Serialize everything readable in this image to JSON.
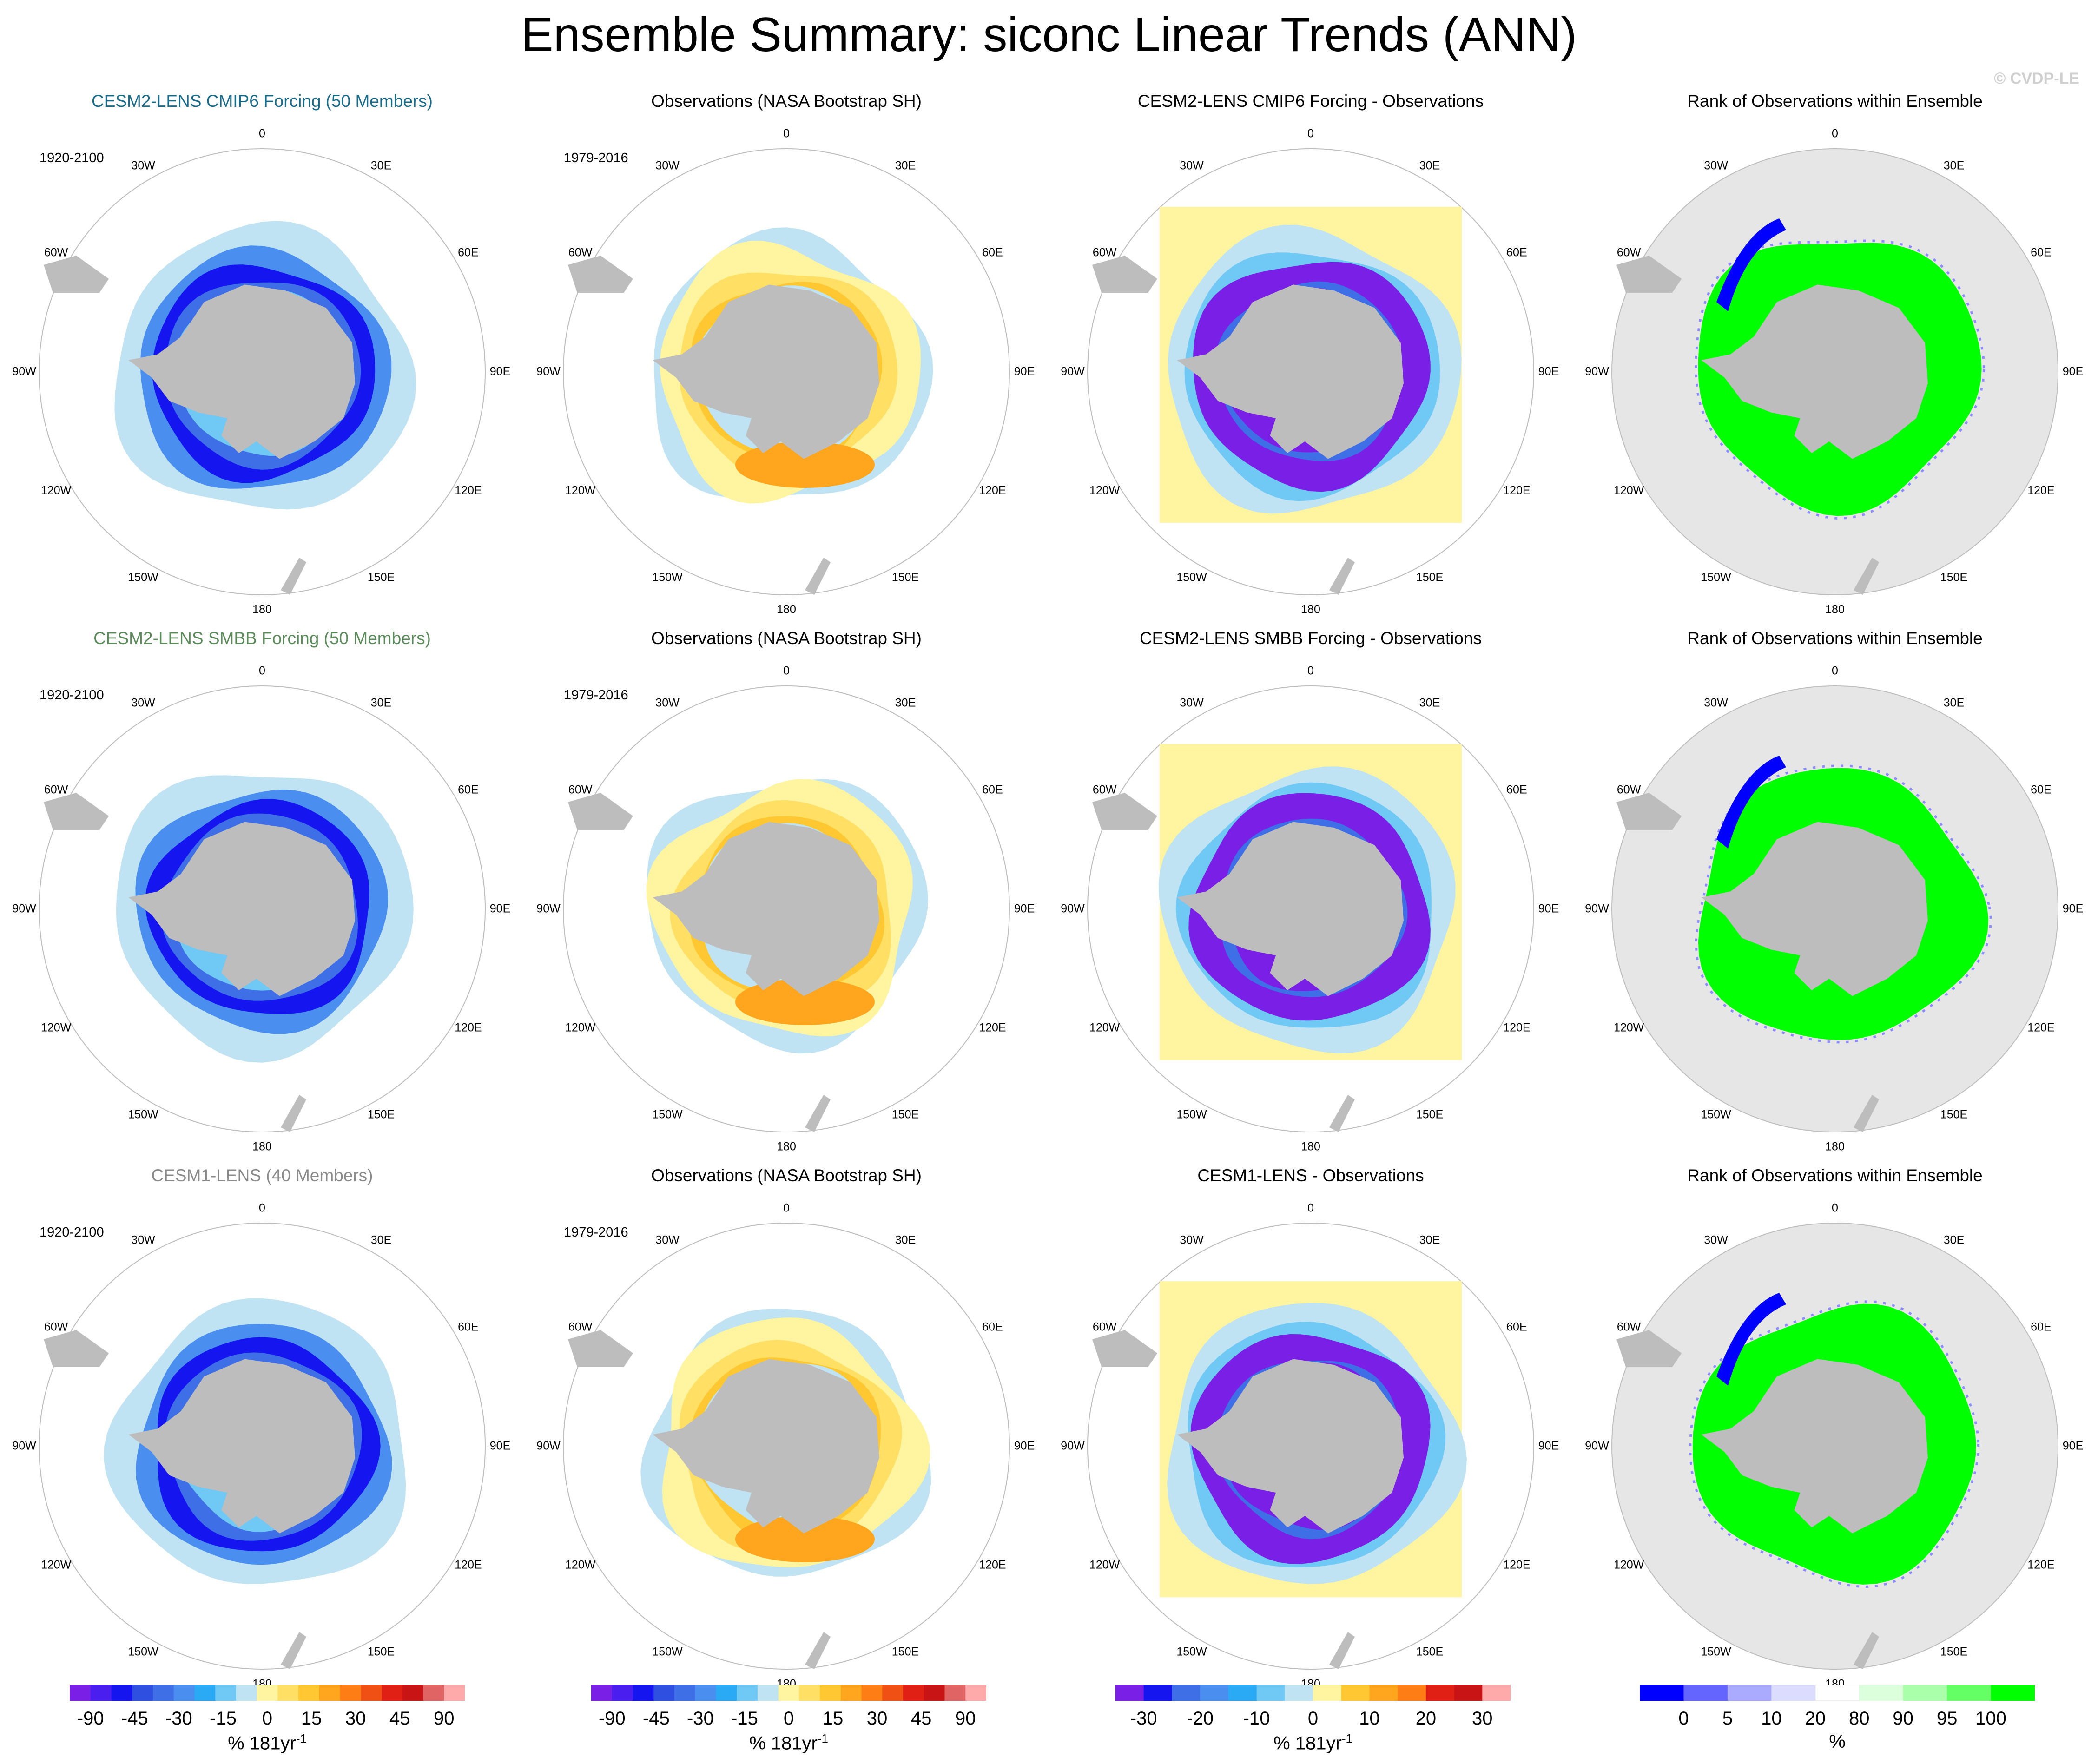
{
  "figure": {
    "title": "Ensemble Summary: siconc Linear Trends (ANN)",
    "credit": "© CVDP-LE"
  },
  "chart_data": [
    {
      "type": "heatmap",
      "row": 1,
      "col": 1,
      "title": "CESM2-LENS CMIP6 Forcing (50 Members)",
      "title_color": "#1a6b8a",
      "period": "1920-2100",
      "projection": "south polar stereographic",
      "scale": "trend",
      "pattern": "ens",
      "lon_labels": [
        "0",
        "30E",
        "60E",
        "90E",
        "120E",
        "150E",
        "180",
        "150W",
        "120W",
        "90W",
        "60W",
        "30W"
      ]
    },
    {
      "type": "heatmap",
      "row": 1,
      "col": 2,
      "title": "Observations (NASA Bootstrap SH)",
      "title_color": "#000000",
      "period": "1979-2016",
      "projection": "south polar stereographic",
      "scale": "trend",
      "pattern": "obs",
      "lon_labels": [
        "0",
        "30E",
        "60E",
        "90E",
        "120E",
        "150E",
        "180",
        "150W",
        "120W",
        "90W",
        "60W",
        "30W"
      ]
    },
    {
      "type": "heatmap",
      "row": 1,
      "col": 3,
      "title": "CESM2-LENS CMIP6 Forcing - Observations",
      "title_color": "#000000",
      "period": "",
      "projection": "south polar stereographic",
      "scale": "diff",
      "pattern": "diff",
      "lon_labels": [
        "0",
        "30E",
        "60E",
        "90E",
        "120E",
        "150E",
        "180",
        "150W",
        "120W",
        "90W",
        "60W",
        "30W"
      ]
    },
    {
      "type": "heatmap",
      "row": 1,
      "col": 4,
      "title": "Rank of Observations within Ensemble",
      "title_color": "#000000",
      "period": "",
      "projection": "south polar stereographic",
      "scale": "rank",
      "pattern": "rank",
      "lon_labels": [
        "0",
        "30E",
        "60E",
        "90E",
        "120E",
        "150E",
        "180",
        "150W",
        "120W",
        "90W",
        "60W",
        "30W"
      ]
    },
    {
      "type": "heatmap",
      "row": 2,
      "col": 1,
      "title": "CESM2-LENS SMBB Forcing (50 Members)",
      "title_color": "#5a8a5a",
      "period": "1920-2100",
      "projection": "south polar stereographic",
      "scale": "trend",
      "pattern": "ens",
      "lon_labels": [
        "0",
        "30E",
        "60E",
        "90E",
        "120E",
        "150E",
        "180",
        "150W",
        "120W",
        "90W",
        "60W",
        "30W"
      ]
    },
    {
      "type": "heatmap",
      "row": 2,
      "col": 2,
      "title": "Observations (NASA Bootstrap SH)",
      "title_color": "#000000",
      "period": "1979-2016",
      "projection": "south polar stereographic",
      "scale": "trend",
      "pattern": "obs",
      "lon_labels": [
        "0",
        "30E",
        "60E",
        "90E",
        "120E",
        "150E",
        "180",
        "150W",
        "120W",
        "90W",
        "60W",
        "30W"
      ]
    },
    {
      "type": "heatmap",
      "row": 2,
      "col": 3,
      "title": "CESM2-LENS SMBB Forcing - Observations",
      "title_color": "#000000",
      "period": "",
      "projection": "south polar stereographic",
      "scale": "diff",
      "pattern": "diff",
      "lon_labels": [
        "0",
        "30E",
        "60E",
        "90E",
        "120E",
        "150E",
        "180",
        "150W",
        "120W",
        "90W",
        "60W",
        "30W"
      ]
    },
    {
      "type": "heatmap",
      "row": 2,
      "col": 4,
      "title": "Rank of Observations within Ensemble",
      "title_color": "#000000",
      "period": "",
      "projection": "south polar stereographic",
      "scale": "rank",
      "pattern": "rank",
      "lon_labels": [
        "0",
        "30E",
        "60E",
        "90E",
        "120E",
        "150E",
        "180",
        "150W",
        "120W",
        "90W",
        "60W",
        "30W"
      ]
    },
    {
      "type": "heatmap",
      "row": 3,
      "col": 1,
      "title": "CESM1-LENS (40 Members)",
      "title_color": "#8a8a8a",
      "period": "1920-2100",
      "projection": "south polar stereographic",
      "scale": "trend",
      "pattern": "ens",
      "lon_labels": [
        "0",
        "30E",
        "60E",
        "90E",
        "120E",
        "150E",
        "180",
        "150W",
        "120W",
        "90W",
        "60W",
        "30W"
      ]
    },
    {
      "type": "heatmap",
      "row": 3,
      "col": 2,
      "title": "Observations (NASA Bootstrap SH)",
      "title_color": "#000000",
      "period": "1979-2016",
      "projection": "south polar stereographic",
      "scale": "trend",
      "pattern": "obs",
      "lon_labels": [
        "0",
        "30E",
        "60E",
        "90E",
        "120E",
        "150E",
        "180",
        "150W",
        "120W",
        "90W",
        "60W",
        "30W"
      ]
    },
    {
      "type": "heatmap",
      "row": 3,
      "col": 3,
      "title": "CESM1-LENS - Observations",
      "title_color": "#000000",
      "period": "",
      "projection": "south polar stereographic",
      "scale": "diff",
      "pattern": "diff",
      "lon_labels": [
        "0",
        "30E",
        "60E",
        "90E",
        "120E",
        "150E",
        "180",
        "150W",
        "120W",
        "90W",
        "60W",
        "30W"
      ]
    },
    {
      "type": "heatmap",
      "row": 3,
      "col": 4,
      "title": "Rank of Observations within Ensemble",
      "title_color": "#000000",
      "period": "",
      "projection": "south polar stereographic",
      "scale": "rank",
      "pattern": "rank",
      "lon_labels": [
        "0",
        "30E",
        "60E",
        "90E",
        "120E",
        "150E",
        "180",
        "150W",
        "120W",
        "90W",
        "60W",
        "30W"
      ]
    }
  ],
  "colorbars": [
    {
      "scale": "trend",
      "unit": "% 181yr",
      "unit_sup": "-1",
      "ticks": [
        "-90",
        "-45",
        "-30",
        "-15",
        "0",
        "15",
        "30",
        "45",
        "90"
      ],
      "colors": [
        "#7a1fe6",
        "#4b1ef0",
        "#1515f0",
        "#2e4fe0",
        "#3f6fe6",
        "#4a8ff0",
        "#2aaaf5",
        "#70c8f5",
        "#bfe3f2",
        "#fff4a0",
        "#ffe064",
        "#ffc832",
        "#ffa51e",
        "#ff7d14",
        "#f05014",
        "#e02014",
        "#c81414",
        "#e06464",
        "#ffaaaa"
      ]
    },
    {
      "scale": "trend",
      "unit": "% 181yr",
      "unit_sup": "-1",
      "ticks": [
        "-90",
        "-45",
        "-30",
        "-15",
        "0",
        "15",
        "30",
        "45",
        "90"
      ],
      "colors": [
        "#7a1fe6",
        "#4b1ef0",
        "#1515f0",
        "#2e4fe0",
        "#3f6fe6",
        "#4a8ff0",
        "#2aaaf5",
        "#70c8f5",
        "#bfe3f2",
        "#fff4a0",
        "#ffe064",
        "#ffc832",
        "#ffa51e",
        "#ff7d14",
        "#f05014",
        "#e02014",
        "#c81414",
        "#e06464",
        "#ffaaaa"
      ]
    },
    {
      "scale": "diff",
      "unit": "% 181yr",
      "unit_sup": "-1",
      "ticks": [
        "-30",
        "-20",
        "-10",
        "0",
        "10",
        "20",
        "30"
      ],
      "colors": [
        "#7a1fe6",
        "#1515f0",
        "#3f6fe6",
        "#4a8ff0",
        "#2aaaf5",
        "#70c8f5",
        "#bfe3f2",
        "#fff4a0",
        "#ffc832",
        "#ffa51e",
        "#ff7d14",
        "#e02014",
        "#c81414",
        "#ffaaaa"
      ]
    },
    {
      "scale": "rank",
      "unit": "%",
      "unit_sup": "",
      "ticks": [
        "0",
        "5",
        "10",
        "20",
        "80",
        "90",
        "95",
        "100"
      ],
      "colors": [
        "#0000ff",
        "#6464ff",
        "#aaaaff",
        "#dcdcff",
        "#ffffff",
        "#dcffdc",
        "#aaffaa",
        "#64ff64",
        "#00ff00"
      ]
    }
  ]
}
